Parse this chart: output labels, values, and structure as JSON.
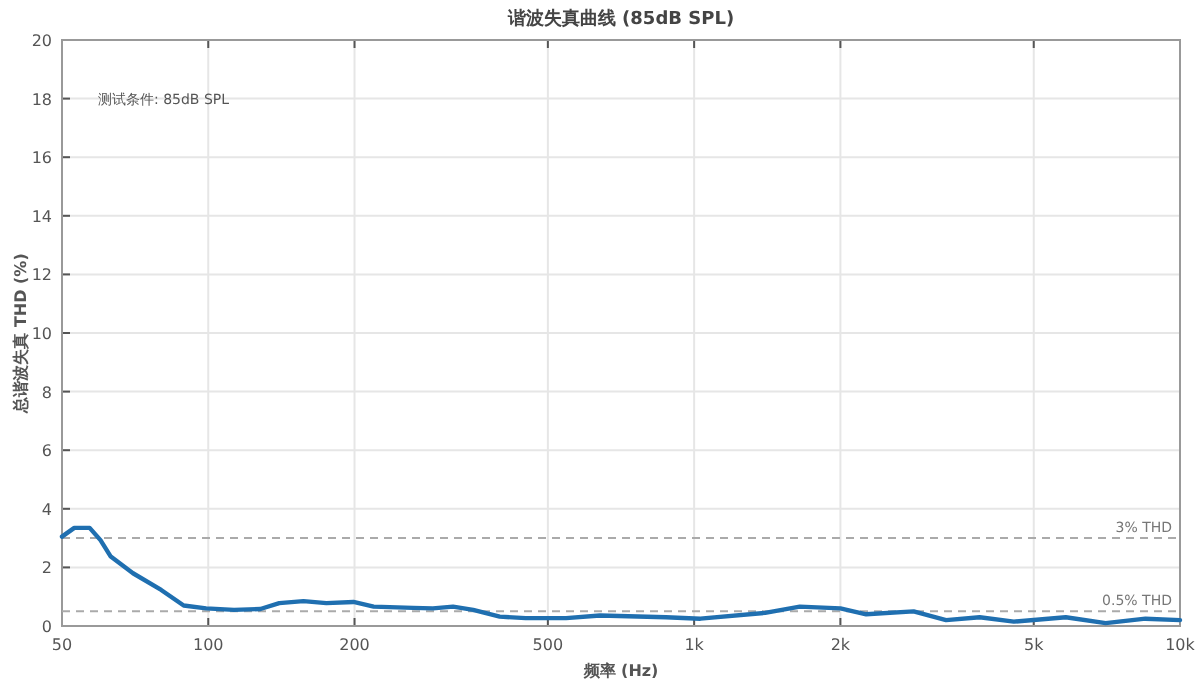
{
  "chart_data": {
    "type": "line",
    "title": "谐波失真曲线 (85dB SPL)",
    "xlabel": "频率 (Hz)",
    "ylabel": "总谐波失真 THD (%)",
    "annotations": [
      "测试条件: 85dB SPL"
    ],
    "log": "x",
    "xlim": [
      50,
      10000
    ],
    "xticks": [
      50,
      100,
      200,
      500,
      {
        "value": 1000,
        "label": "1k"
      },
      {
        "value": 2000,
        "label": "2k"
      },
      {
        "value": 5000,
        "label": "5k"
      },
      {
        "value": 10000,
        "label": "10k"
      }
    ],
    "ylim": [
      0,
      20
    ],
    "yticks": [
      0,
      2,
      4,
      6,
      8,
      10,
      12,
      14,
      16,
      18,
      20
    ],
    "grid": true,
    "line_style": "solid",
    "marker": "none",
    "ref_lines": [
      {
        "axis": "y",
        "value": 3,
        "label": "3% THD",
        "color": "#aaaaaa",
        "line_style": "dashed"
      },
      {
        "axis": "y",
        "value": 0.5,
        "label": "0.5% THD",
        "color": "#aaaaaa",
        "line_style": "dashed"
      }
    ],
    "series": [
      {
        "color": "#1f6fb0",
        "x": [
          50,
          53,
          57,
          60,
          63,
          70,
          80,
          89,
          99,
          113,
          128,
          140,
          157,
          175,
          199,
          219,
          264,
          290,
          319,
          351,
          398,
          450,
          545,
          640,
          875,
          1030,
          1400,
          1650,
          2000,
          2260,
          2830,
          3300,
          3870,
          4550,
          5820,
          7030,
          8490,
          10000
        ],
        "values": [
          3.05,
          3.35,
          3.35,
          2.93,
          2.37,
          1.8,
          1.23,
          0.7,
          0.6,
          0.55,
          0.58,
          0.78,
          0.85,
          0.78,
          0.82,
          0.66,
          0.62,
          0.6,
          0.66,
          0.55,
          0.32,
          0.27,
          0.27,
          0.36,
          0.3,
          0.25,
          0.45,
          0.66,
          0.6,
          0.4,
          0.5,
          0.2,
          0.3,
          0.15,
          0.3,
          0.1,
          0.25,
          0.2
        ]
      }
    ]
  }
}
